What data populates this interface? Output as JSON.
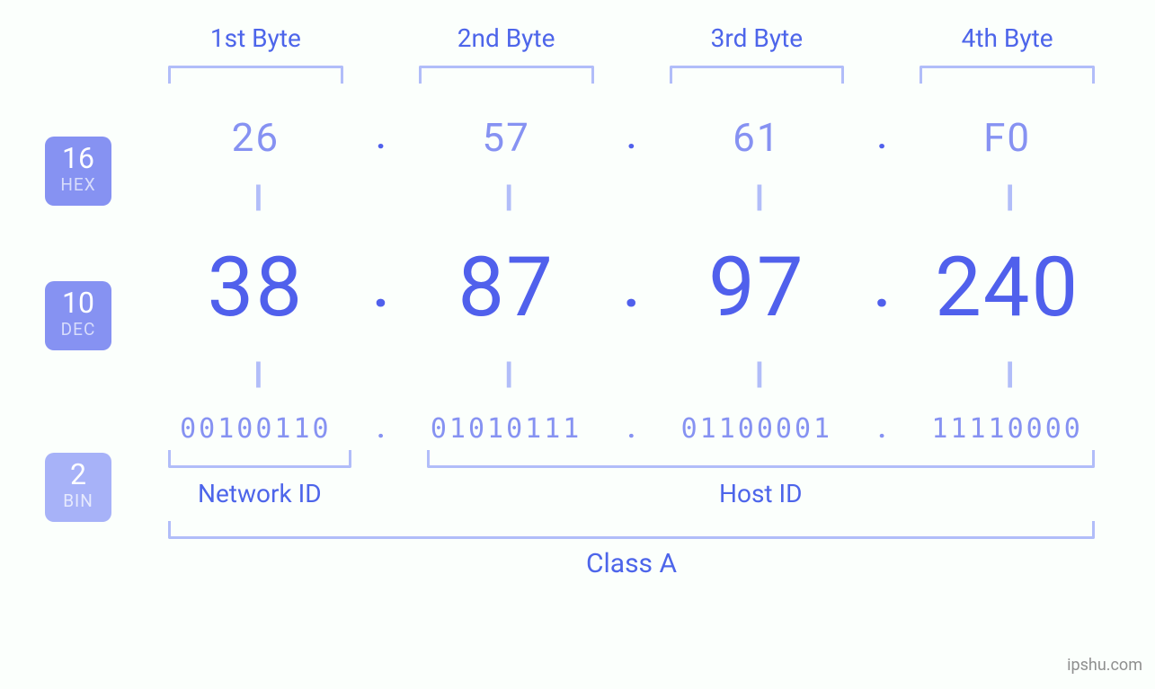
{
  "background_color": "#fbfffc",
  "accent_primary": "#5060ec",
  "accent_soft": "#8692f2",
  "accent_softer": "#a7b2f8",
  "bracket_color": "#b1bdf9",
  "badge_hex": {
    "num": "16",
    "txt": "HEX"
  },
  "badge_dec": {
    "num": "10",
    "txt": "DEC"
  },
  "badge_bin": {
    "num": "2",
    "txt": "BIN"
  },
  "byte_headers": [
    "1st Byte",
    "2nd Byte",
    "3rd Byte",
    "4th Byte"
  ],
  "hex": [
    "26",
    "57",
    "61",
    "F0"
  ],
  "dec": [
    "38",
    "87",
    "97",
    "240"
  ],
  "bin": [
    "00100110",
    "01010111",
    "01100001",
    "11110000"
  ],
  "eq": "||",
  "dot": ".",
  "network_id_label": "Network ID",
  "host_id_label": "Host ID",
  "class_label": "Class A",
  "watermark": "ipshu.com",
  "fontsize": {
    "header": 28,
    "hex": 44,
    "dec": 92,
    "bin": 30,
    "eq": 34,
    "badge_num": 32,
    "badge_txt": 19,
    "class": 30
  }
}
